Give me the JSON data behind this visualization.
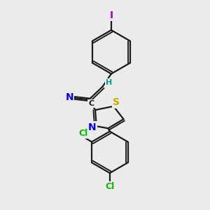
{
  "background_color": "#ebebeb",
  "bond_color": "#1a1a1a",
  "atom_colors": {
    "N": "#0000ff",
    "S": "#ccaa00",
    "Cl": "#00bb00",
    "I": "#aa00cc",
    "H": "#009999",
    "C": "#1a1a1a"
  },
  "figsize": [
    3.0,
    3.0
  ],
  "dpi": 100
}
